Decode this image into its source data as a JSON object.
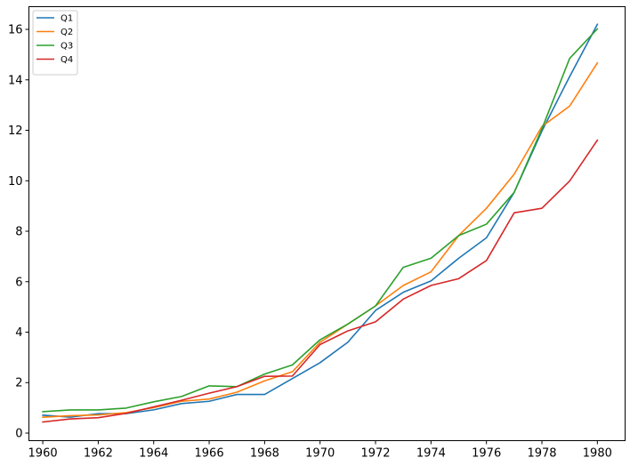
{
  "chart_data": {
    "type": "line",
    "title": "",
    "xlabel": "",
    "ylabel": "",
    "x": [
      1960,
      1961,
      1962,
      1963,
      1964,
      1965,
      1966,
      1967,
      1968,
      1969,
      1970,
      1971,
      1972,
      1973,
      1974,
      1975,
      1976,
      1977,
      1978,
      1979,
      1980
    ],
    "xlim": [
      1959.5,
      1981.0
    ],
    "ylim": [
      -0.3,
      16.9
    ],
    "xticks": [
      1960,
      1962,
      1964,
      1966,
      1968,
      1970,
      1972,
      1974,
      1976,
      1978,
      1980
    ],
    "yticks": [
      0,
      2,
      4,
      6,
      8,
      10,
      12,
      14,
      16
    ],
    "grid": false,
    "legend_position": "top-left",
    "series": [
      {
        "name": "Q1",
        "color": "#1f77b4",
        "values": [
          0.71,
          0.63,
          0.77,
          0.77,
          0.92,
          1.17,
          1.26,
          1.53,
          1.53,
          2.16,
          2.79,
          3.6,
          4.86,
          5.58,
          6.03,
          6.93,
          7.74,
          9.54,
          11.97,
          14.13,
          16.2
        ]
      },
      {
        "name": "Q2",
        "color": "#ff7f0e",
        "values": [
          0.63,
          0.69,
          0.72,
          0.81,
          1.01,
          1.26,
          1.35,
          1.62,
          2.07,
          2.43,
          3.6,
          4.32,
          5.04,
          5.85,
          6.39,
          7.83,
          8.91,
          10.26,
          12.15,
          12.96,
          14.67
        ]
      },
      {
        "name": "Q3",
        "color": "#2ca02c",
        "values": [
          0.85,
          0.92,
          0.92,
          0.99,
          1.24,
          1.45,
          1.87,
          1.84,
          2.34,
          2.7,
          3.7,
          4.32,
          5.04,
          6.57,
          6.93,
          7.83,
          8.28,
          9.54,
          12.06,
          14.85,
          16.02
        ]
      },
      {
        "name": "Q4",
        "color": "#d62728",
        "values": [
          0.44,
          0.56,
          0.61,
          0.78,
          1.04,
          1.3,
          1.58,
          1.84,
          2.25,
          2.26,
          3.51,
          4.05,
          4.41,
          5.31,
          5.85,
          6.12,
          6.84,
          8.73,
          8.91,
          9.99,
          11.61
        ]
      }
    ]
  }
}
